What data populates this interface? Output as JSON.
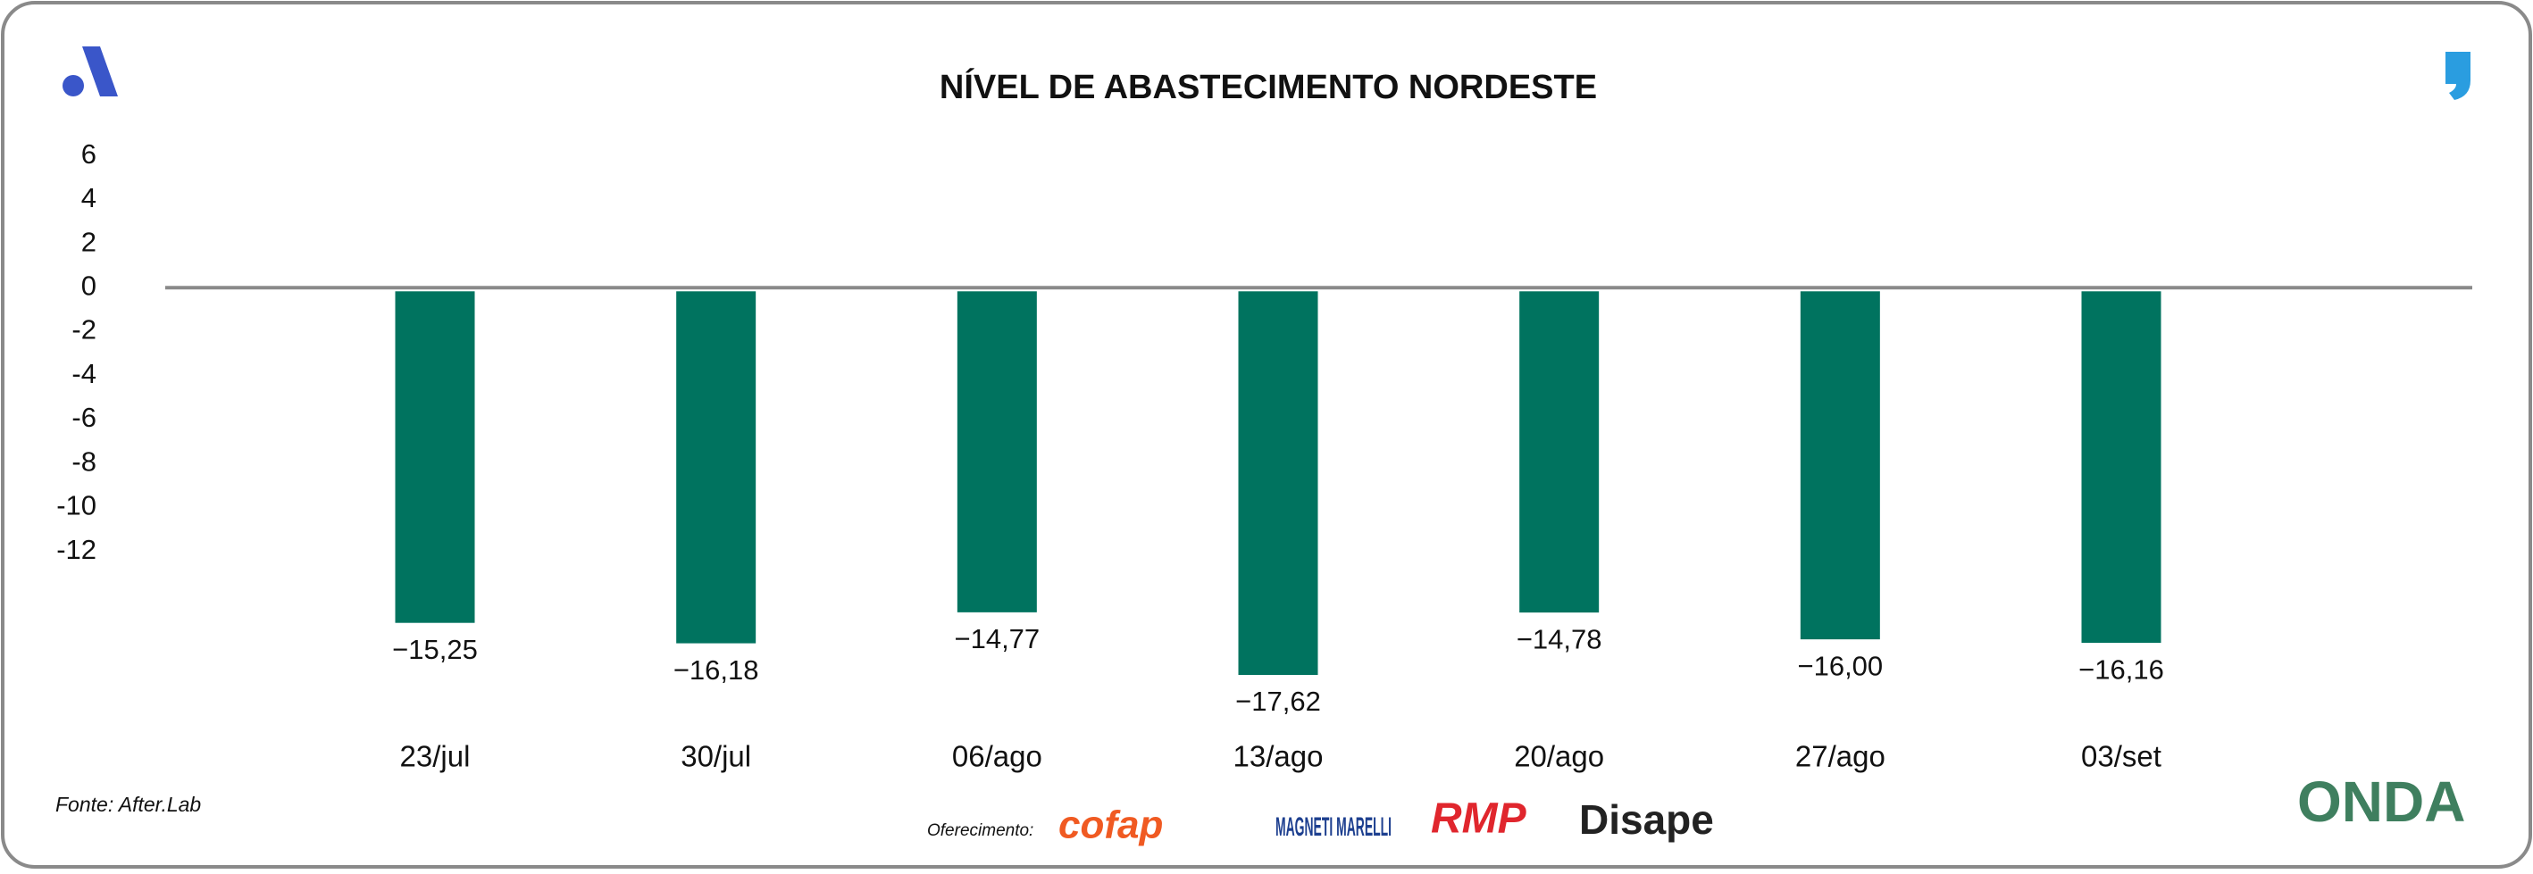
{
  "chart_data": {
    "type": "bar",
    "title": "NÍVEL DE ABASTECIMENTO NORDESTE",
    "categories": [
      "23/jul",
      "30/jul",
      "06/ago",
      "13/ago",
      "20/ago",
      "27/ago",
      "03/set"
    ],
    "values": [
      -15.25,
      -16.18,
      -14.77,
      -17.62,
      -14.78,
      -16.0,
      -16.16
    ],
    "value_labels": [
      "−15,25",
      "−16,18",
      "−14,77",
      "−17,62",
      "−14,78",
      "−16,00",
      "−16,16"
    ],
    "color": "#00735f",
    "ylim": [
      -19,
      7
    ],
    "yticks": [
      6,
      4,
      2,
      0,
      -2,
      -4,
      -6,
      -8,
      -10,
      -12
    ],
    "grid": false
  },
  "footer": {
    "source": "Fonte: After.Lab",
    "sponsor_label": "Oferecimento:",
    "logos": [
      "cofap",
      "MAGNETI MARELLI",
      "RMP",
      "Disape",
      "ONDA"
    ]
  }
}
